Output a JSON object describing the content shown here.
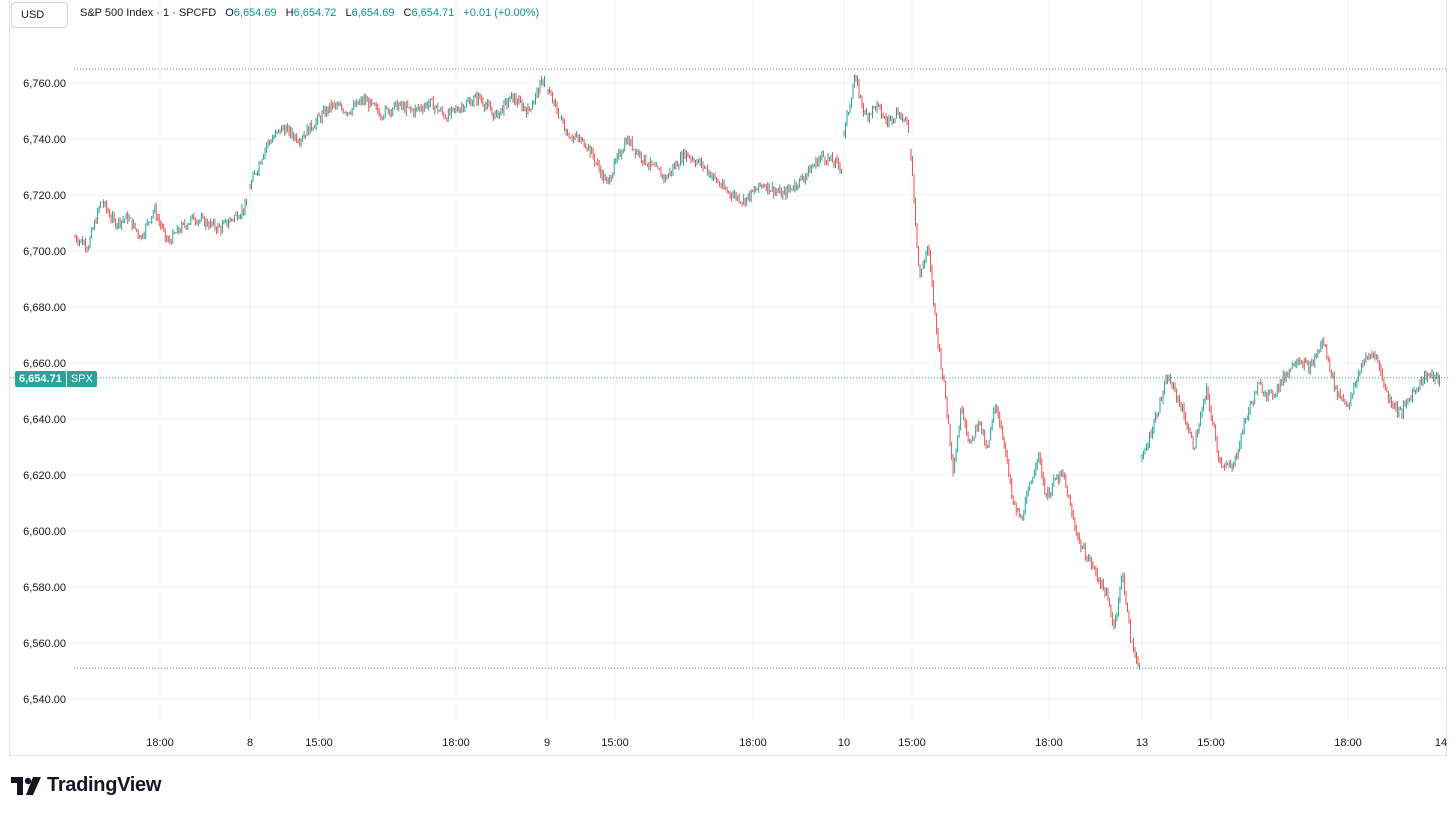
{
  "header": {
    "currency": "USD",
    "symbol_line": "S&P 500 Index · 1 · SPCFD",
    "open_label": "O",
    "open_value": "6,654.69",
    "high_label": "H",
    "high_value": "6,654.72",
    "low_label": "L",
    "low_value": "6,654.69",
    "close_label": "C",
    "close_value": "6,654.71",
    "change": "+0.01 (+0.00%)"
  },
  "price_tag": {
    "price": "6,654.71",
    "symbol": "SPX"
  },
  "brand": {
    "name": "TradingView"
  },
  "colors": {
    "up": "#26a69a",
    "down": "#ef5350",
    "last_price": "#26a69a",
    "grid": "#f0f3fa",
    "text": "#131722"
  },
  "chart_data": {
    "type": "candlestick",
    "ylim": [
      6535,
      6770
    ],
    "y_ticks": [
      "6,540.00",
      "6,560.00",
      "6,580.00",
      "6,600.00",
      "6,620.00",
      "6,640.00",
      "6,660.00",
      "6,680.00",
      "6,700.00",
      "6,720.00",
      "6,740.00",
      "6,760.00"
    ],
    "x_ticks": [
      "18:00",
      "8",
      "15:00",
      "18:00",
      "9",
      "15:00",
      "18:00",
      "10",
      "15:00",
      "18:00",
      "13",
      "15:00",
      "18:00",
      "14"
    ],
    "last_price": 6654.71,
    "high_marker": 6765,
    "low_marker": 6551,
    "series": [
      {
        "sessions": [
          {
            "key": [
              6705,
              6702,
              6718,
              6710,
              6712,
              6705,
              6715,
              6703,
              6708,
              6712,
              6710,
              6708,
              6712,
              6716
            ]
          },
          {
            "key": [
              6723,
              6738,
              6744,
              6740,
              6746,
              6752,
              6750,
              6754,
              6749,
              6752,
              6750,
              6753,
              6748,
              6752,
              6755,
              6748,
              6755,
              6750,
              6762
            ]
          },
          {
            "key": [
              6757,
              6742,
              6738,
              6724,
              6740,
              6732,
              6726,
              6735,
              6730,
              6722,
              6718,
              6724,
              6720,
              6726,
              6734,
              6730
            ]
          },
          {
            "key": [
              6742,
              6762,
              6748,
              6752,
              6746,
              6750,
              6744
            ]
          },
          {
            "key": [
              6735,
              6690,
              6702,
              6672,
              6650,
              6622,
              6645,
              6630,
              6640,
              6628,
              6646,
              6632,
              6610,
              6604,
              6615,
              6628,
              6612,
              6618,
              6620,
              6606,
              6595,
              6590,
              6584,
              6578,
              6566,
              6585,
              6560,
              6552
            ]
          },
          {
            "key": [
              6625,
              6640,
              6655,
              6645,
              6630,
              6650,
              6625,
              6622,
              6640,
              6652,
              6648,
              6655,
              6662,
              6658,
              6668,
              6650,
              6645,
              6660,
              6664,
              6648,
              6642,
              6650,
              6656,
              6654
            ]
          }
        ]
      }
    ]
  }
}
